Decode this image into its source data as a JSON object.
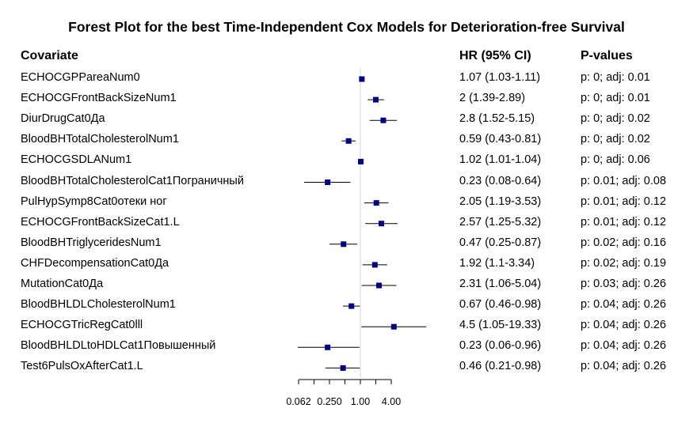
{
  "title": "Forest Plot for the best Time-Independent Cox Models for Deterioration-free Survival",
  "headers": {
    "covariate": "Covariate",
    "hr": "HR (95% CI)",
    "pvalues": "P-values"
  },
  "colors": {
    "point": "#00008B",
    "line": "#000000",
    "reference": "#d3d3d3"
  },
  "chart_data": {
    "type": "forest",
    "title": "Forest Plot for the best Time-Independent Cox Models for Deterioration-free Survival",
    "x_scale": "log2",
    "xlim": [
      0.0625,
      4
    ],
    "x_ticks": [
      0.0625,
      0.25,
      1,
      4
    ],
    "x_tick_labels": [
      "0.062",
      "0.250",
      "1.00",
      "4.00"
    ],
    "reference_line": 1,
    "rows": [
      {
        "covariate": "ECHOCGPPareaNum0",
        "hr": 1.07,
        "lo": 1.03,
        "hi": 1.11,
        "hr_text": "1.07 (1.03-1.11)",
        "p_text": "p: 0; adj: 0.01"
      },
      {
        "covariate": "ECHOCGFrontBackSizeNum1",
        "hr": 2,
        "lo": 1.39,
        "hi": 2.89,
        "hr_text": "2 (1.39-2.89)",
        "p_text": "p: 0; adj: 0.01"
      },
      {
        "covariate": "DiurDrugCat0Да",
        "hr": 2.8,
        "lo": 1.52,
        "hi": 5.15,
        "hr_text": "2.8 (1.52-5.15)",
        "p_text": "p: 0; adj: 0.02"
      },
      {
        "covariate": "BloodBHTotalCholesterolNum1",
        "hr": 0.59,
        "lo": 0.43,
        "hi": 0.81,
        "hr_text": "0.59 (0.43-0.81)",
        "p_text": "p: 0; adj: 0.02"
      },
      {
        "covariate": "ECHOCGSDLANum1",
        "hr": 1.02,
        "lo": 1.01,
        "hi": 1.04,
        "hr_text": "1.02 (1.01-1.04)",
        "p_text": "p: 0; adj: 0.06"
      },
      {
        "covariate": "BloodBHTotalCholesterolCat1Пограничный",
        "hr": 0.23,
        "lo": 0.08,
        "hi": 0.64,
        "hr_text": "0.23 (0.08-0.64)",
        "p_text": "p: 0.01; adj: 0.08"
      },
      {
        "covariate": "PulHypSymp8Cat0отеки ног",
        "hr": 2.05,
        "lo": 1.19,
        "hi": 3.53,
        "hr_text": "2.05 (1.19-3.53)",
        "p_text": "p: 0.01; adj: 0.12"
      },
      {
        "covariate": "ECHOCGFrontBackSizeCat1.L",
        "hr": 2.57,
        "lo": 1.25,
        "hi": 5.32,
        "hr_text": "2.57 (1.25-5.32)",
        "p_text": "p: 0.01; adj: 0.12"
      },
      {
        "covariate": "BloodBHTriglyceridesNum1",
        "hr": 0.47,
        "lo": 0.25,
        "hi": 0.87,
        "hr_text": "0.47 (0.25-0.87)",
        "p_text": "p: 0.02; adj: 0.16"
      },
      {
        "covariate": "CHFDecompensationCat0Да",
        "hr": 1.92,
        "lo": 1.1,
        "hi": 3.34,
        "hr_text": "1.92 (1.1-3.34)",
        "p_text": "p: 0.02; adj: 0.19"
      },
      {
        "covariate": "MutationCat0Да",
        "hr": 2.31,
        "lo": 1.06,
        "hi": 5.04,
        "hr_text": "2.31 (1.06-5.04)",
        "p_text": "p: 0.03; adj: 0.26"
      },
      {
        "covariate": "BloodBHLDLCholesterolNum1",
        "hr": 0.67,
        "lo": 0.46,
        "hi": 0.98,
        "hr_text": "0.67 (0.46-0.98)",
        "p_text": "p: 0.04; adj: 0.26"
      },
      {
        "covariate": "ECHOCGTricRegCat0lll",
        "hr": 4.5,
        "lo": 1.05,
        "hi": 19.33,
        "hr_text": "4.5 (1.05-19.33)",
        "p_text": "p: 0.04; adj: 0.26"
      },
      {
        "covariate": "BloodBHLDLtoHDLCat1Повышенный",
        "hr": 0.23,
        "lo": 0.06,
        "hi": 0.96,
        "hr_text": "0.23 (0.06-0.96)",
        "p_text": "p: 0.04; adj: 0.26"
      },
      {
        "covariate": "Test6PulsOxAfterCat1.L",
        "hr": 0.46,
        "lo": 0.21,
        "hi": 0.98,
        "hr_text": "0.46 (0.21-0.98)",
        "p_text": "p: 0.04; adj: 0.26"
      }
    ]
  }
}
